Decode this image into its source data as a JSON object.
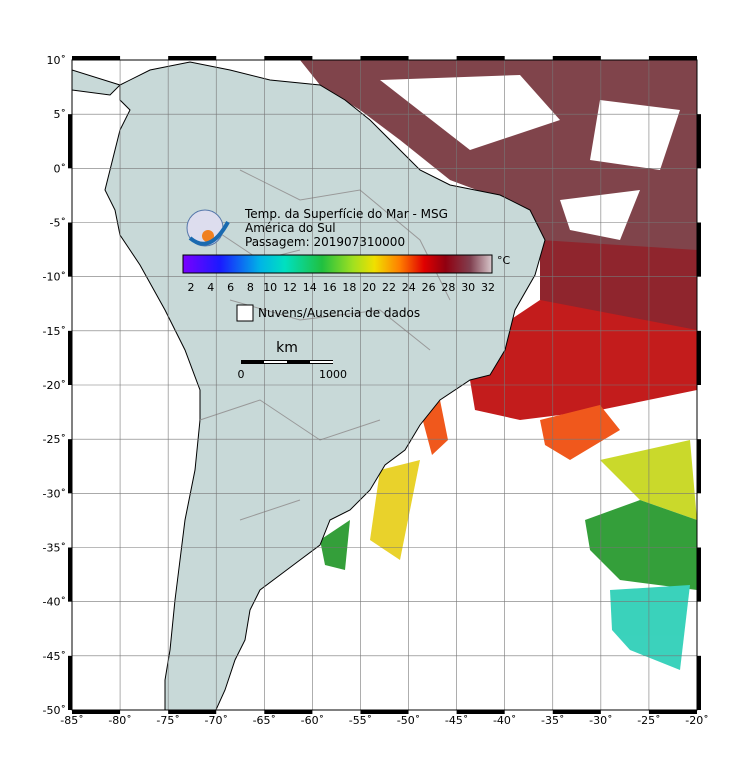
{
  "map": {
    "title_lines": [
      "Temp. da Superfície do Mar - MSG",
      "América do Sul",
      "Passagem: 201907310000"
    ],
    "colorbar": {
      "unit": "°C",
      "ticks": [
        "2",
        "4",
        "6",
        "8",
        "10",
        "12",
        "14",
        "16",
        "18",
        "20",
        "22",
        "24",
        "26",
        "28",
        "30",
        "32"
      ]
    },
    "legend": "Nuvens/Ausencia de dados",
    "scale_bar": {
      "unit": "km",
      "start": "0",
      "end": "1000"
    },
    "lon_ticks": [
      "-85˚",
      "-80˚",
      "-75˚",
      "-70˚",
      "-65˚",
      "-60˚",
      "-55˚",
      "-50˚",
      "-45˚",
      "-40˚",
      "-35˚",
      "-30˚",
      "-25˚",
      "-20˚"
    ],
    "lat_ticks": [
      "10˚",
      "5˚",
      "0˚",
      "-5˚",
      "-10˚",
      "-15˚",
      "-20˚",
      "-25˚",
      "-30˚",
      "-35˚",
      "-40˚",
      "-45˚",
      "-50˚"
    ]
  }
}
